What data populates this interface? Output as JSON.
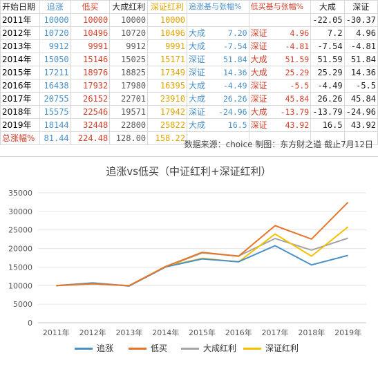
{
  "table": {
    "headers": [
      "开始日期",
      "追涨",
      "低买",
      "大成红利",
      "深证红利",
      "追涨基与张幅%",
      "低买基与张幅%",
      "大成",
      "深证"
    ],
    "rows": [
      {
        "date": "2011年",
        "chase": "10000",
        "lowbuy": "10000",
        "dacheng": "10000",
        "shenzheng": "10000",
        "chase_base": "",
        "chase_pct": "",
        "low_base": "",
        "low_pct": "",
        "dc_pct": "-22.05",
        "sz_pct": "-30.37"
      },
      {
        "date": "2012年",
        "chase": "10720",
        "lowbuy": "10496",
        "dacheng": "10720",
        "shenzheng": "10496",
        "chase_base": "大成",
        "chase_pct": "7.20",
        "low_base": "深证",
        "low_pct": "4.96",
        "dc_pct": "7.2",
        "sz_pct": "4.96"
      },
      {
        "date": "2013年",
        "chase": "9912",
        "lowbuy": "9991",
        "dacheng": "9912",
        "shenzheng": "9991",
        "chase_base": "大成",
        "chase_pct": "-7.54",
        "low_base": "深证",
        "low_pct": "-4.81",
        "dc_pct": "-7.54",
        "sz_pct": "-4.81"
      },
      {
        "date": "2014年",
        "chase": "15050",
        "lowbuy": "15146",
        "dacheng": "15025",
        "shenzheng": "15171",
        "chase_base": "深证",
        "chase_pct": "51.84",
        "low_base": "大成",
        "low_pct": "51.59",
        "dc_pct": "51.59",
        "sz_pct": "51.84"
      },
      {
        "date": "2015年",
        "chase": "17211",
        "lowbuy": "18976",
        "dacheng": "18825",
        "shenzheng": "17349",
        "chase_base": "深证",
        "chase_pct": "14.36",
        "low_base": "大成",
        "low_pct": "25.29",
        "dc_pct": "25.29",
        "sz_pct": "14.36"
      },
      {
        "date": "2016年",
        "chase": "16438",
        "lowbuy": "17932",
        "dacheng": "17980",
        "shenzheng": "16395",
        "chase_base": "大成",
        "chase_pct": "-4.49",
        "low_base": "深证",
        "low_pct": "-5.5",
        "dc_pct": "-4.49",
        "sz_pct": "-5.5"
      },
      {
        "date": "2017年",
        "chase": "20755",
        "lowbuy": "26152",
        "dacheng": "22701",
        "shenzheng": "23910",
        "chase_base": "大成",
        "chase_pct": "26.26",
        "low_base": "深证",
        "low_pct": "45.84",
        "dc_pct": "26.26",
        "sz_pct": "45.84"
      },
      {
        "date": "2018年",
        "chase": "15575",
        "lowbuy": "22546",
        "dacheng": "19571",
        "shenzheng": "17942",
        "chase_base": "深证",
        "chase_pct": "-24.96",
        "low_base": "大成",
        "low_pct": "-13.79",
        "dc_pct": "-13.79",
        "sz_pct": "-24.96"
      },
      {
        "date": "2019年",
        "chase": "18144",
        "lowbuy": "32448",
        "dacheng": "22800",
        "shenzheng": "25822",
        "chase_base": "大成",
        "chase_pct": "16.5",
        "low_base": "深证",
        "low_pct": "43.92",
        "dc_pct": "16.5",
        "sz_pct": "43.92"
      }
    ],
    "total": {
      "label": "总涨幅%",
      "chase": "81.44",
      "lowbuy": "224.48",
      "dacheng": "128.00",
      "shenzheng": "158.22"
    },
    "note": "数据来源：choice 制图：东方财之道  截止7月12日"
  },
  "colors": {
    "chase": "#4a90c8",
    "lowbuy": "#e8742a",
    "dacheng": "#a5a5a5",
    "shenzheng": "#f5c000"
  },
  "chart_data": {
    "type": "line",
    "title": "追涨vs低买（中证红利+深证红利）",
    "categories": [
      "2011年",
      "2012年",
      "2013年",
      "2014年",
      "2015年",
      "2016年",
      "2017年",
      "2018年",
      "2019年"
    ],
    "series": [
      {
        "name": "追涨",
        "values": [
          10000,
          10720,
          9912,
          15050,
          17211,
          16438,
          20755,
          15575,
          18144
        ]
      },
      {
        "name": "低买",
        "values": [
          10000,
          10496,
          9991,
          15146,
          18976,
          17932,
          26152,
          22546,
          32448
        ]
      },
      {
        "name": "大成红利",
        "values": [
          10000,
          10720,
          9912,
          15025,
          18825,
          17980,
          22701,
          19571,
          22800
        ]
      },
      {
        "name": "深证红利",
        "values": [
          10000,
          10496,
          9991,
          15171,
          17349,
          16395,
          23910,
          17942,
          25822
        ]
      }
    ],
    "yticks": [
      "0",
      "5000",
      "10000",
      "15000",
      "20000",
      "25000",
      "30000",
      "35000"
    ],
    "ylim": [
      0,
      35000
    ],
    "grid": true,
    "legend": "bottom"
  }
}
